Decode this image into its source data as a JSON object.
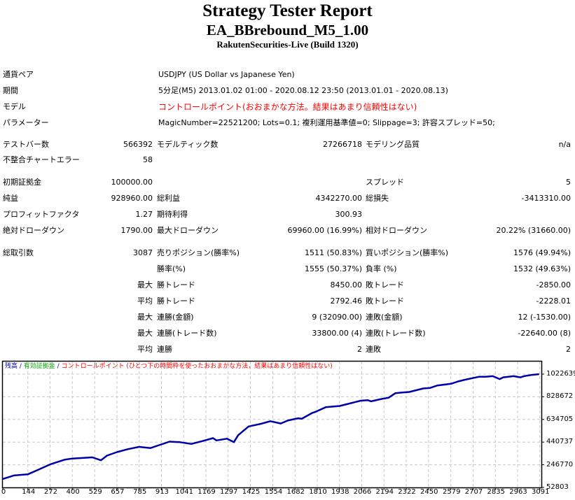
{
  "header": {
    "title": "Strategy Tester Report",
    "ea_name": "EA_BBrebound_M5_1.00",
    "server": "RakutenSecurities-Live (Build 1320)"
  },
  "info": {
    "symbol_label": "通貨ペア",
    "symbol_value": "USDJPY (US Dollar vs Japanese Yen)",
    "period_label": "期間",
    "period_value": "5分足(M5) 2013.01.02 01:00 - 2020.08.12 23:50 (2013.01.01 - 2020.08.13)",
    "model_label": "モデル",
    "model_value": "コントロールポイント(おおまかな方法。結果はあまり信頼性はない)",
    "params_label": "パラメーター",
    "params_value": "MagicNumber=22521200; Lots=0.1; 複利運用基準値=0; Slippage=3; 許容スプレッド=50;"
  },
  "bars": {
    "bars_label": "テストバー数",
    "bars_value": "566392",
    "ticks_label": "モデルティック数",
    "ticks_value": "27266718",
    "quality_label": "モデリング品質",
    "quality_value": "n/a",
    "errors_label": "不整合チャートエラー",
    "errors_value": "58"
  },
  "results": {
    "deposit_label": "初期証拠金",
    "deposit_value": "100000.00",
    "spread_label": "スプレッド",
    "spread_value": "5",
    "net_profit_label": "純益",
    "net_profit_value": "928960.00",
    "gross_profit_label": "総利益",
    "gross_profit_value": "4342270.00",
    "gross_loss_label": "総損失",
    "gross_loss_value": "-3413310.00",
    "pf_label": "プロフィットファクタ",
    "pf_value": "1.27",
    "expected_label": "期待利得",
    "expected_value": "300.93",
    "abs_dd_label": "絶対ドローダウン",
    "abs_dd_value": "1790.00",
    "max_dd_label": "最大ドローダウン",
    "max_dd_value": "69960.00 (16.99%)",
    "rel_dd_label": "相対ドローダウン",
    "rel_dd_value": "20.22% (31660.00)"
  },
  "trades": {
    "total_label": "総取引数",
    "total_value": "3087",
    "short_label": "売りポジション(勝率%)",
    "short_value": "1511 (50.83%)",
    "long_label": "買いポジション(勝率%)",
    "long_value": "1576 (49.94%)",
    "win_rate_label": "勝率(%)",
    "win_rate_value": "1555 (50.37%)",
    "loss_rate_label": "負率 (%)",
    "loss_rate_value": "1532 (49.63%)",
    "rows": [
      {
        "prefix": "最大",
        "win_label": "勝トレード",
        "win_value": "8450.00",
        "loss_label": "敗トレード",
        "loss_value": "-2850.00"
      },
      {
        "prefix": "平均",
        "win_label": "勝トレード",
        "win_value": "2792.46",
        "loss_label": "敗トレード",
        "loss_value": "-2228.01"
      },
      {
        "prefix": "最大",
        "win_label": "連勝(金額)",
        "win_value": "9 (32090.00)",
        "loss_label": "連敗(金額)",
        "loss_value": "12 (-1530.00)"
      },
      {
        "prefix": "最大",
        "win_label": "連勝(トレード数)",
        "win_value": "33800.00 (4)",
        "loss_label": "連敗(トレード数)",
        "loss_value": "-22640.00 (8)"
      },
      {
        "prefix": "平均",
        "win_label": "連勝",
        "win_value": "2",
        "loss_label": "連敗",
        "loss_value": "2"
      }
    ]
  },
  "chart_legend": {
    "balance": "残高",
    "sep1": " / ",
    "equity": "有効証拠金",
    "sep2": " / ",
    "model_note": "コントロールポイント (ひとつ下の時間枠を使ったおおまかな方法，結果はあまり信頼性はない)"
  },
  "colors": {
    "line": "#0000aa",
    "grid": "#c8c8c8",
    "legend_balance": "#0000aa",
    "legend_equity": "#00aa00",
    "legend_note": "#ff0000",
    "model_warning": "#ff0000"
  },
  "chart_data": {
    "type": "line",
    "title": "残高 / 有効証拠金",
    "xlabel": "",
    "ylabel": "",
    "x_ticks": [
      "0",
      "144",
      "272",
      "400",
      "529",
      "657",
      "785",
      "913",
      "1041",
      "1169",
      "1297",
      "1425",
      "1554",
      "1682",
      "1810",
      "1938",
      "2066",
      "2194",
      "2322",
      "2450",
      "2579",
      "2707",
      "2835",
      "2963",
      "3091"
    ],
    "y_ticks": [
      "1022639",
      "828672",
      "634705",
      "440737",
      "246770",
      "52803"
    ],
    "xlim": [
      0,
      3100
    ],
    "ylim": [
      52803,
      1022639
    ],
    "grid": true,
    "legend_position": "top-left",
    "series": [
      {
        "name": "残高",
        "x": [
          0,
          64,
          144,
          205,
          272,
          355,
          400,
          515,
          565,
          600,
          657,
          720,
          785,
          850,
          900,
          960,
          1020,
          1085,
          1150,
          1210,
          1230,
          1290,
          1330,
          1355,
          1415,
          1480,
          1540,
          1600,
          1640,
          1700,
          1720,
          1780,
          1800,
          1860,
          1940,
          1980,
          2060,
          2100,
          2120,
          2180,
          2220,
          2260,
          2300,
          2340,
          2420,
          2460,
          2500,
          2580,
          2620,
          2660,
          2740,
          2780,
          2820,
          2860,
          2880,
          2940,
          2980,
          3000,
          3040,
          3087
        ],
        "values": [
          125000,
          155000,
          165000,
          205000,
          250000,
          290000,
          300000,
          310000,
          285000,
          325000,
          355000,
          380000,
          400000,
          390000,
          415000,
          445000,
          440000,
          425000,
          450000,
          475000,
          455000,
          470000,
          440000,
          500000,
          575000,
          595000,
          620000,
          600000,
          625000,
          645000,
          640000,
          690000,
          700000,
          740000,
          750000,
          765000,
          795000,
          800000,
          790000,
          810000,
          820000,
          860000,
          865000,
          870000,
          900000,
          905000,
          925000,
          940000,
          960000,
          975000,
          1000000,
          1000000,
          1005000,
          980000,
          995000,
          1005000,
          995000,
          1005000,
          1015000,
          1022639
        ]
      }
    ]
  }
}
